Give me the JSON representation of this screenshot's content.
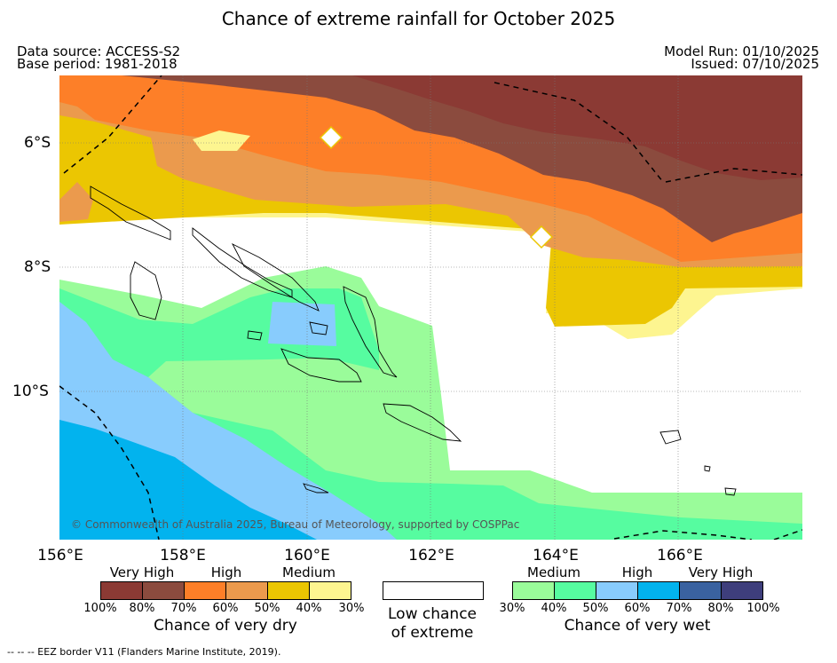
{
  "title": "Chance of extreme rainfall for October 2025",
  "meta": {
    "data_source": "Data source: ACCESS-S2",
    "base_period": "Base period: 1981-2018",
    "model_run": "Model Run: 01/10/2025",
    "issued": "Issued: 07/10/2025"
  },
  "map": {
    "credit": "© Commonwealth of Australia 2025, Bureau of Meteorology, supported by COSPPac",
    "lat_labels": [
      "6°S",
      "8°S",
      "10°S"
    ],
    "lon_labels": [
      "156°E",
      "158°E",
      "160°E",
      "162°E",
      "164°E",
      "166°E"
    ]
  },
  "colors": {
    "dry100": "#8b3a34",
    "dry80": "#8b4b3e",
    "dry70": "#fd7f28",
    "dry60": "#eb9a4d",
    "dry50": "#ebc602",
    "dry40": "#fdf590",
    "wet30": "#9afc9a",
    "wet40": "#56fca0",
    "wet50": "#88ccfd",
    "wet60": "#02b3ee",
    "wet70": "#3a62a0",
    "wet80": "#3e3e7c"
  },
  "legend": {
    "dry": {
      "categories": [
        "Very High",
        "High",
        "Medium"
      ],
      "percents": [
        "100%",
        "80%",
        "70%",
        "60%",
        "50%",
        "40%",
        "30%"
      ],
      "caption": "Chance of very dry"
    },
    "low": {
      "line1": "Low chance",
      "line2": "of extreme"
    },
    "wet": {
      "categories": [
        "Medium",
        "High",
        "Very High"
      ],
      "percents": [
        "30%",
        "40%",
        "50%",
        "60%",
        "70%",
        "80%",
        "100%"
      ],
      "caption": "Chance of very wet"
    }
  },
  "footer": {
    "eez_note": "--  --  -- EEZ border V11 (Flanders Marine Institute, 2019)."
  }
}
